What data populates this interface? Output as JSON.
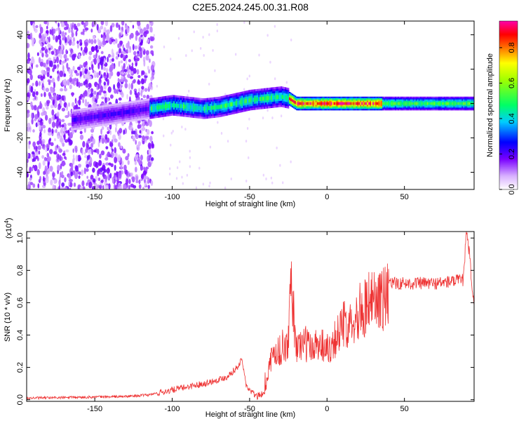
{
  "title": "C2E5.2024.245.00.31.R08",
  "colors": {
    "snr_line": "#ee3333"
  },
  "colorbar": {
    "label": "Normalized spectral amplitude",
    "range": [
      0,
      0.95
    ],
    "ticks": [
      0.0,
      0.2,
      0.4,
      0.6,
      0.8
    ],
    "tick_labels": [
      "0.0",
      "0.2",
      "0.4",
      "0.6",
      "0.8"
    ]
  },
  "chart_data": [
    {
      "type": "heatmap",
      "xlabel": "Height of straight line (km)",
      "ylabel": "Frequency (Hz)",
      "xlim": [
        -194,
        95
      ],
      "ylim": [
        -50,
        48
      ],
      "xticks": [
        -150,
        -100,
        -50,
        0,
        50
      ],
      "xtick_labels": [
        "-150",
        "-100",
        "-50",
        "0",
        "50"
      ],
      "yticks": [
        -40,
        -20,
        0,
        20,
        40
      ],
      "ytick_labels": [
        "-40",
        "-20",
        "0",
        "20",
        "40"
      ],
      "noise_region_x": [
        -194,
        -112
      ],
      "ridge": {
        "x": [
          -115,
          -100,
          -90,
          -80,
          -70,
          -60,
          -50,
          -40,
          -30,
          -25,
          -20,
          0,
          20,
          40,
          60,
          80,
          95
        ],
        "y": [
          -3,
          -1,
          -2,
          -3,
          -2,
          0,
          2,
          3,
          4,
          3,
          0,
          0,
          0,
          0,
          0,
          0,
          0
        ]
      }
    },
    {
      "type": "line",
      "xlabel": "Height of straight line (km)",
      "ylabel": "SNR (10 * v/v)",
      "y_scale_label": "(x10",
      "y_scale_exponent": "4",
      "y_scale_suffix": ")",
      "xlim": [
        -194,
        95
      ],
      "ylim": [
        -0.01,
        1.04
      ],
      "xticks": [
        -150,
        -100,
        -50,
        0,
        50
      ],
      "xtick_labels": [
        "-150",
        "-100",
        "-50",
        "0",
        "50"
      ],
      "yticks": [
        0.0,
        0.2,
        0.4,
        0.6,
        0.8,
        1.0
      ],
      "ytick_labels": [
        "0.0",
        "0.2",
        "0.4",
        "0.6",
        "0.8",
        "1.0"
      ],
      "series": [
        {
          "x": [
            -194,
            -160,
            -130,
            -115,
            -105,
            -95,
            -85,
            -75,
            -65,
            -58,
            -55,
            -52,
            -48,
            -45,
            -40,
            -37,
            -35,
            -30,
            -25,
            -23,
            -20,
            -15,
            -10,
            -5,
            0,
            5,
            10,
            15,
            20,
            25,
            30,
            35,
            40,
            50,
            60,
            70,
            80,
            88,
            90,
            92,
            95
          ],
          "y": [
            0.01,
            0.015,
            0.02,
            0.03,
            0.05,
            0.07,
            0.09,
            0.11,
            0.14,
            0.2,
            0.25,
            0.08,
            0.04,
            0.02,
            0.05,
            0.25,
            0.3,
            0.35,
            0.4,
            0.8,
            0.35,
            0.4,
            0.35,
            0.4,
            0.35,
            0.42,
            0.5,
            0.55,
            0.6,
            0.65,
            0.68,
            0.7,
            0.72,
            0.72,
            0.72,
            0.72,
            0.73,
            0.74,
            1.03,
            0.9,
            0.55
          ]
        }
      ]
    }
  ]
}
